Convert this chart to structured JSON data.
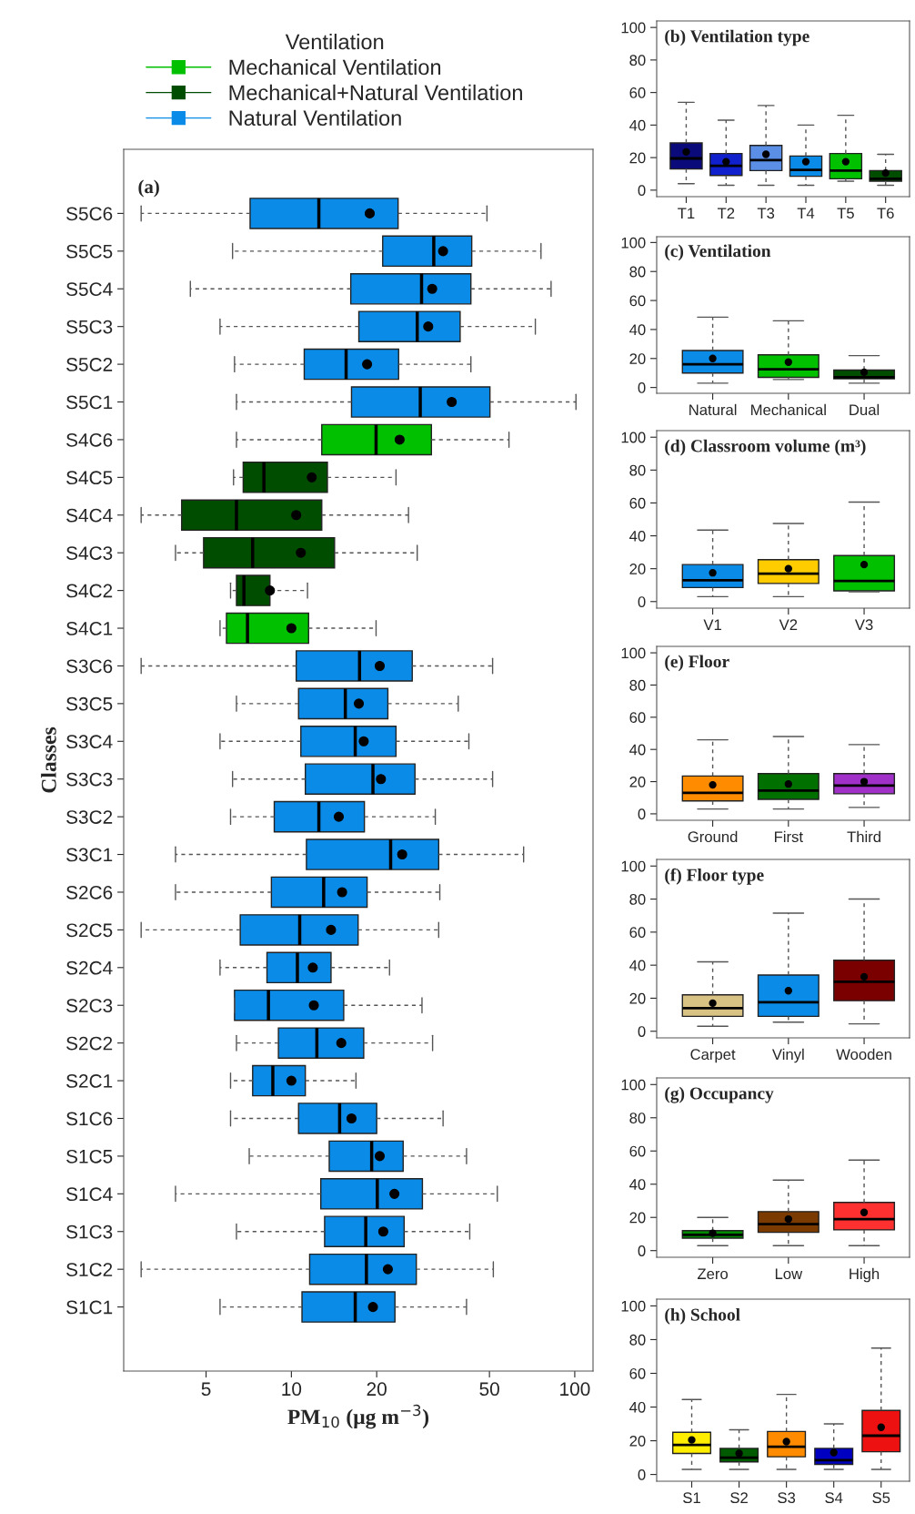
{
  "chart_data": [
    {
      "type": "box",
      "title": "(a)",
      "xlabel": "PM$_{10}$ (μg m$^{−3}$)",
      "ylabel": "Classes",
      "orientation": "horizontal",
      "log": "x",
      "xlim": [
        2.56,
        116
      ],
      "xticks": [
        5,
        10,
        20,
        50,
        100
      ],
      "legend": "top",
      "legend_title": "Ventilation",
      "categories": [
        "S5C6",
        "S5C5",
        "S5C4",
        "S5C3",
        "S5C2",
        "S5C1",
        "S4C6",
        "S4C5",
        "S4C4",
        "S4C3",
        "S4C2",
        "S4C1",
        "S3C6",
        "S3C5",
        "S3C4",
        "S3C3",
        "S3C2",
        "S3C1",
        "S2C6",
        "S2C5",
        "S2C4",
        "S2C3",
        "S2C2",
        "S2C1",
        "S1C6",
        "S1C5",
        "S1C4",
        "S1C3",
        "S1C2",
        "S1C1"
      ],
      "series": [
        {
          "name": "Mechanical Ventilation",
          "color": "#00c000",
          "boxes": [
            null,
            null,
            null,
            null,
            null,
            null,
            {
              "low": 6.4,
              "q1": 12.8,
              "median": 19.9,
              "q3": 31.2,
              "high": 58.6,
              "mean": 24.1
            },
            null,
            null,
            null,
            null,
            {
              "low": 5.6,
              "q1": 5.9,
              "median": 7.0,
              "q3": 11.5,
              "high": 19.9,
              "mean": 10
            },
            null,
            null,
            null,
            null,
            null,
            null,
            null,
            null,
            null,
            null,
            null,
            null,
            null,
            null,
            null,
            null,
            null,
            null
          ]
        },
        {
          "name": "Mechanical+Natural Ventilation",
          "color": "#004d00",
          "boxes": [
            null,
            null,
            null,
            null,
            null,
            null,
            null,
            {
              "low": 6.25,
              "q1": 6.76,
              "median": 8.0,
              "q3": 13.4,
              "high": 23.4,
              "mean": 11.8
            },
            {
              "low": 2.95,
              "q1": 4.1,
              "median": 6.4,
              "q3": 12.8,
              "high": 25.9,
              "mean": 10.4
            },
            {
              "low": 3.9,
              "q1": 4.9,
              "median": 7.3,
              "q3": 14.2,
              "high": 27.8,
              "mean": 10.8
            },
            {
              "low": 6.1,
              "q1": 6.4,
              "median": 6.8,
              "q3": 8.4,
              "high": 11.4,
              "mean": 8.4
            },
            null,
            null,
            null,
            null,
            null,
            null,
            null,
            null,
            null,
            null,
            null,
            null,
            null,
            null,
            null,
            null,
            null,
            null,
            null
          ]
        },
        {
          "name": "Natural Ventilation",
          "color": "#0b8be8",
          "boxes": [
            {
              "low": 2.95,
              "q1": 7.15,
              "median": 12.5,
              "q3": 23.8,
              "high": 49,
              "mean": 18.9
            },
            {
              "low": 6.2,
              "q1": 21,
              "median": 31.8,
              "q3": 43.3,
              "high": 76,
              "mean": 34.3
            },
            {
              "low": 4.4,
              "q1": 16.2,
              "median": 28.8,
              "q3": 43,
              "high": 82.5,
              "mean": 31.4
            },
            {
              "low": 5.6,
              "q1": 17.3,
              "median": 27.8,
              "q3": 39.4,
              "high": 72.6,
              "mean": 30.4
            },
            {
              "low": 6.3,
              "q1": 11.1,
              "median": 15.6,
              "q3": 23.9,
              "high": 43,
              "mean": 18.5
            },
            {
              "low": 6.4,
              "q1": 16.3,
              "median": 28.5,
              "q3": 50.2,
              "high": 101,
              "mean": 36.8
            },
            null,
            null,
            null,
            null,
            null,
            null,
            {
              "low": 2.95,
              "q1": 10.4,
              "median": 17.4,
              "q3": 26.7,
              "high": 51.3,
              "mean": 20.5
            },
            {
              "low": 6.4,
              "q1": 10.6,
              "median": 15.5,
              "q3": 21.9,
              "high": 38.8,
              "mean": 17.3
            },
            {
              "low": 5.6,
              "q1": 10.8,
              "median": 16.8,
              "q3": 23.4,
              "high": 42.3,
              "mean": 18
            },
            {
              "low": 6.2,
              "q1": 11.2,
              "median": 19.4,
              "q3": 27.3,
              "high": 51.3,
              "mean": 20.7
            },
            {
              "low": 6.1,
              "q1": 8.7,
              "median": 12.5,
              "q3": 18.1,
              "high": 32.2,
              "mean": 14.7
            },
            {
              "low": 3.9,
              "q1": 11.3,
              "median": 22.4,
              "q3": 33.1,
              "high": 66,
              "mean": 24.6
            },
            {
              "low": 3.9,
              "q1": 8.5,
              "median": 13,
              "q3": 18.5,
              "high": 33.4,
              "mean": 15.1
            },
            {
              "low": 2.95,
              "q1": 6.6,
              "median": 10.7,
              "q3": 17.2,
              "high": 33.1,
              "mean": 13.8
            },
            {
              "low": 5.6,
              "q1": 8.2,
              "median": 10.5,
              "q3": 13.8,
              "high": 22.2,
              "mean": 11.9
            },
            {
              "low": 6.3,
              "q1": 6.3,
              "median": 8.3,
              "q3": 15.3,
              "high": 28.9,
              "mean": 12
            },
            {
              "low": 6.4,
              "q1": 9,
              "median": 12.3,
              "q3": 18,
              "high": 31.5,
              "mean": 15
            },
            {
              "low": 6.1,
              "q1": 7.3,
              "median": 8.6,
              "q3": 11.2,
              "high": 16.9,
              "mean": 10
            },
            {
              "low": 6.1,
              "q1": 10.6,
              "median": 14.8,
              "q3": 20,
              "high": 34.3,
              "mean": 16.3
            },
            {
              "low": 7.1,
              "q1": 13.6,
              "median": 19.2,
              "q3": 24.8,
              "high": 41.5,
              "mean": 20.5
            },
            {
              "low": 3.9,
              "q1": 12.7,
              "median": 20.1,
              "q3": 29,
              "high": 53.3,
              "mean": 23.1
            },
            {
              "low": 6.4,
              "q1": 13.1,
              "median": 18.3,
              "q3": 25,
              "high": 42.6,
              "mean": 21.1
            },
            {
              "low": 2.95,
              "q1": 11.6,
              "median": 18.4,
              "q3": 27.6,
              "high": 51.6,
              "mean": 21.9
            },
            {
              "low": 5.6,
              "q1": 10.9,
              "median": 16.8,
              "q3": 23.2,
              "high": 41.5,
              "mean": 19.4
            }
          ]
        }
      ]
    },
    {
      "type": "box",
      "title": "(b) Ventilation type",
      "ylim": [
        -4,
        104
      ],
      "yticks": [
        0,
        20,
        40,
        60,
        80,
        100
      ],
      "categories": [
        "T1",
        "T2",
        "T3",
        "T4",
        "T5",
        "T6"
      ],
      "colors": [
        "#0a0a7a",
        "#1020cc",
        "#5b8fe6",
        "#0b8be8",
        "#00c000",
        "#004d00"
      ],
      "boxes": [
        {
          "low": 4,
          "q1": 13,
          "median": 19.5,
          "q3": 29,
          "high": 54,
          "mean": 23.5
        },
        {
          "low": 3,
          "q1": 9,
          "median": 15,
          "q3": 22.5,
          "high": 43,
          "mean": 17.5
        },
        {
          "low": 3,
          "q1": 12,
          "median": 18.5,
          "q3": 27.5,
          "high": 52,
          "mean": 22
        },
        {
          "low": 3,
          "q1": 8.5,
          "median": 12.5,
          "q3": 21,
          "high": 40,
          "mean": 17.5
        },
        {
          "low": 5.5,
          "q1": 7,
          "median": 12,
          "q3": 22.5,
          "high": 46,
          "mean": 17.5
        },
        {
          "low": 3,
          "q1": 5.5,
          "median": 7,
          "q3": 12,
          "high": 22,
          "mean": 10.5
        }
      ]
    },
    {
      "type": "box",
      "title": "(c) Ventilation",
      "ylim": [
        -4,
        104
      ],
      "yticks": [
        0,
        20,
        40,
        60,
        80,
        100
      ],
      "categories": [
        "Natural",
        "Mechanical",
        "Dual"
      ],
      "colors": [
        "#0b8be8",
        "#00c000",
        "#004d00"
      ],
      "boxes": [
        {
          "low": 3,
          "q1": 10,
          "median": 16,
          "q3": 25.5,
          "high": 48.5,
          "mean": 20
        },
        {
          "low": 5.5,
          "q1": 7,
          "median": 12.5,
          "q3": 22.5,
          "high": 46,
          "mean": 17.5
        },
        {
          "low": 3,
          "q1": 6,
          "median": 7,
          "q3": 12,
          "high": 22,
          "mean": 10.5
        }
      ]
    },
    {
      "type": "box",
      "title": "(d) Classroom volume (m³)",
      "ylim": [
        -4,
        104
      ],
      "yticks": [
        0,
        20,
        40,
        60,
        80,
        100
      ],
      "categories": [
        "V1",
        "V2",
        "V3"
      ],
      "colors": [
        "#0b8be8",
        "#ffcc00",
        "#00c000"
      ],
      "boxes": [
        {
          "low": 3,
          "q1": 8.5,
          "median": 13,
          "q3": 22.5,
          "high": 43.5,
          "mean": 17.5
        },
        {
          "low": 3,
          "q1": 11,
          "median": 17,
          "q3": 25.5,
          "high": 47.5,
          "mean": 20
        },
        {
          "low": 6,
          "q1": 6.5,
          "median": 12.5,
          "q3": 28,
          "high": 60.5,
          "mean": 22.5
        }
      ]
    },
    {
      "type": "box",
      "title": "(e) Floor",
      "ylim": [
        -4,
        104
      ],
      "yticks": [
        0,
        20,
        40,
        60,
        80,
        100
      ],
      "categories": [
        "Ground",
        "First",
        "Third"
      ],
      "colors": [
        "#ff8c00",
        "#007000",
        "#a030c8"
      ],
      "boxes": [
        {
          "low": 3,
          "q1": 8,
          "median": 13,
          "q3": 23.5,
          "high": 46,
          "mean": 18
        },
        {
          "low": 3,
          "q1": 9,
          "median": 14.5,
          "q3": 25,
          "high": 48,
          "mean": 18.5
        },
        {
          "low": 4,
          "q1": 12.5,
          "median": 17.5,
          "q3": 25,
          "high": 43,
          "mean": 20
        }
      ]
    },
    {
      "type": "box",
      "title": "(f) Floor type",
      "ylim": [
        -4,
        104
      ],
      "yticks": [
        0,
        20,
        40,
        60,
        80,
        100
      ],
      "categories": [
        "Carpet",
        "Vinyl",
        "Wooden"
      ],
      "colors": [
        "#d9c384",
        "#0b8be8",
        "#7a0000"
      ],
      "boxes": [
        {
          "low": 3,
          "q1": 9,
          "median": 14,
          "q3": 22,
          "high": 42,
          "mean": 17
        },
        {
          "low": 5.5,
          "q1": 9,
          "median": 17.5,
          "q3": 34,
          "high": 71.5,
          "mean": 24.5
        },
        {
          "low": 4.5,
          "q1": 18.5,
          "median": 30,
          "q3": 43,
          "high": 80,
          "mean": 33
        }
      ]
    },
    {
      "type": "box",
      "title": "(g) Occupancy",
      "ylim": [
        -4,
        104
      ],
      "yticks": [
        0,
        20,
        40,
        60,
        80,
        100
      ],
      "categories": [
        "Zero",
        "Low",
        "High"
      ],
      "colors": [
        "#008a00",
        "#7a3a00",
        "#ff3030"
      ],
      "boxes": [
        {
          "low": 3,
          "q1": 7.5,
          "median": 9.5,
          "q3": 12,
          "high": 20,
          "mean": 10.5
        },
        {
          "low": 3,
          "q1": 11,
          "median": 16,
          "q3": 23.5,
          "high": 42.5,
          "mean": 19
        },
        {
          "low": 3,
          "q1": 12.5,
          "median": 19,
          "q3": 29,
          "high": 54.5,
          "mean": 23
        }
      ]
    },
    {
      "type": "box",
      "title": "(h) School",
      "ylim": [
        -4,
        104
      ],
      "yticks": [
        0,
        20,
        40,
        60,
        80,
        100
      ],
      "categories": [
        "S1",
        "S2",
        "S3",
        "S4",
        "S5"
      ],
      "colors": [
        "#ffee00",
        "#005a00",
        "#ff8c00",
        "#0000c0",
        "#ee1111"
      ],
      "boxes": [
        {
          "low": 3,
          "q1": 12.5,
          "median": 17.5,
          "q3": 25,
          "high": 44.5,
          "mean": 20.5
        },
        {
          "low": 3,
          "q1": 7.5,
          "median": 10,
          "q3": 15.5,
          "high": 26.5,
          "mean": 12.5
        },
        {
          "low": 3,
          "q1": 10.5,
          "median": 16.5,
          "q3": 25.5,
          "high": 47.5,
          "mean": 19.5
        },
        {
          "low": 3,
          "q1": 6,
          "median": 8.5,
          "q3": 15.5,
          "high": 30,
          "mean": 13
        },
        {
          "low": 3,
          "q1": 13.5,
          "median": 23,
          "q3": 38,
          "high": 75,
          "mean": 28
        }
      ]
    }
  ]
}
